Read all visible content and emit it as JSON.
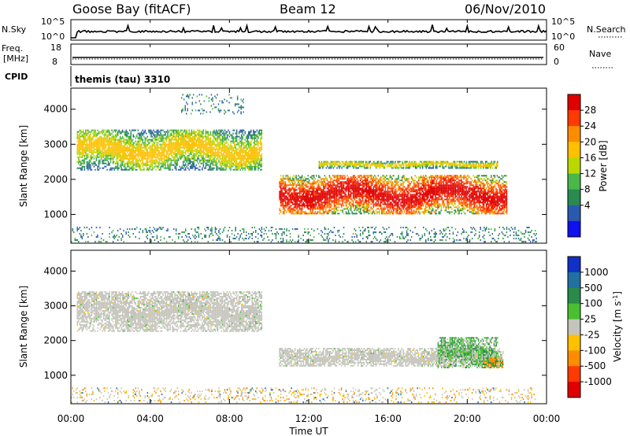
{
  "header": {
    "station": "Goose Bay (fitACF)",
    "beam": "Beam 12",
    "date": "06/Nov/2010"
  },
  "status_panels": {
    "nsky_label": "N.Sky",
    "nsky_ticks": [
      "10^5",
      "10^0"
    ],
    "nsearch_label": "N.Search",
    "nsearch_ticks": [
      "10^5",
      "10^0"
    ],
    "freq_label_1": "Freq.",
    "freq_label_2": "[MHz]",
    "freq_ticks": [
      "18",
      "8"
    ],
    "nave_label": "Nave",
    "nave_ticks": [
      "60",
      "0"
    ],
    "cpid_label": "CPID",
    "cpid_value": "themis (tau) 3310"
  },
  "chart_data": [
    {
      "type": "heatmap",
      "name": "power-panel",
      "ylabel": "Slant Range [km]",
      "ylim": [
        180,
        4600
      ],
      "yticks": [
        "4000",
        "3000",
        "2000",
        "1000"
      ],
      "xlim_hours": [
        0,
        24
      ],
      "colorbar": {
        "label": "Power [dB]",
        "ticks": [
          "28",
          "24",
          "20",
          "16",
          "12",
          "8",
          "4"
        ],
        "colors": [
          "#e00000",
          "#ff3a00",
          "#ff8c00",
          "#ffc000",
          "#b8d800",
          "#48b848",
          "#2a8a50",
          "#2a5ab0",
          "#1010f0"
        ]
      },
      "regions": [
        {
          "t0": 0.3,
          "t1": 9.6,
          "r0": 2250,
          "r1": 3400,
          "level": "low-mid"
        },
        {
          "t0": 5.5,
          "t1": 8.7,
          "r0": 3850,
          "r1": 4400,
          "level": "low"
        },
        {
          "t0": 10.5,
          "t1": 22.0,
          "r0": 1000,
          "r1": 2100,
          "level": "high"
        },
        {
          "t0": 12.5,
          "t1": 21.5,
          "r0": 2300,
          "r1": 2500,
          "level": "mid"
        },
        {
          "t0": 0.0,
          "t1": 23.5,
          "r0": 200,
          "r1": 650,
          "level": "low"
        }
      ]
    },
    {
      "type": "heatmap",
      "name": "velocity-panel",
      "ylabel": "Slant Range [km]",
      "ylim": [
        180,
        4600
      ],
      "yticks": [
        "4000",
        "3000",
        "2000",
        "1000"
      ],
      "xlim_hours": [
        0,
        24
      ],
      "colorbar": {
        "label": "Velocity [m s^-1]",
        "ticks": [
          "1000",
          "500",
          "100",
          "25",
          "-25",
          "-100",
          "-500",
          "-1000"
        ],
        "colors": [
          "#1030c8",
          "#2070a0",
          "#2a8a4a",
          "#48c030",
          "#c4c4bc",
          "#ffc000",
          "#ff8c00",
          "#ff3a00",
          "#e00000"
        ]
      },
      "regions": [
        {
          "t0": 0.3,
          "t1": 9.6,
          "r0": 2250,
          "r1": 3400,
          "level": "ground"
        },
        {
          "t0": 10.5,
          "t1": 21.8,
          "r0": 1250,
          "r1": 1750,
          "level": "ground"
        },
        {
          "t0": 18.5,
          "t1": 21.5,
          "r0": 1200,
          "r1": 2100,
          "level": "positive"
        },
        {
          "t0": 20.8,
          "t1": 21.8,
          "r0": 1200,
          "r1": 1500,
          "level": "negative"
        },
        {
          "t0": 0.0,
          "t1": 23.5,
          "r0": 200,
          "r1": 650,
          "level": "negative-small"
        }
      ]
    }
  ],
  "x_axis": {
    "ticks": [
      "00:00",
      "04:00",
      "08:00",
      "12:00",
      "16:00",
      "20:00",
      "00:00"
    ],
    "label": "Time UT"
  }
}
